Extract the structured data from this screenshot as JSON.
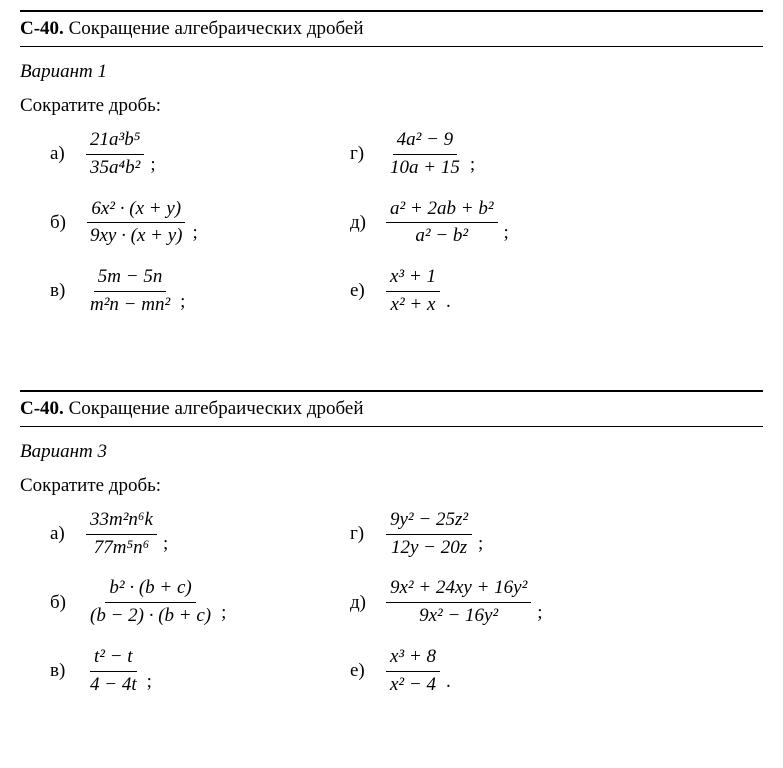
{
  "section1": {
    "code": "С-40.",
    "title": " Сокращение алгебраических дробей",
    "variant": "Вариант 1",
    "instruction": "Сократите дробь:",
    "problems": {
      "a": {
        "label": "а)",
        "num": "21a³b⁵",
        "den": "35a⁴b²",
        "tail": ";"
      },
      "g": {
        "label": "г)",
        "num": "4a² − 9",
        "den": "10a + 15",
        "tail": ";"
      },
      "b": {
        "label": "б)",
        "num": "6x² · (x + y)",
        "den": "9xy · (x + y)",
        "tail": ";"
      },
      "d": {
        "label": "д)",
        "num": "a² + 2ab + b²",
        "den": "a² − b²",
        "tail": ";"
      },
      "v": {
        "label": "в)",
        "num": "5m − 5n",
        "den": "m²n − mn²",
        "tail": ";"
      },
      "e": {
        "label": "е)",
        "num": "x³ + 1",
        "den": "x² + x",
        "tail": "."
      }
    }
  },
  "section2": {
    "code": "С-40.",
    "title": " Сокращение алгебраических дробей",
    "variant": "Вариант 3",
    "instruction": "Сократите дробь:",
    "problems": {
      "a": {
        "label": "а)",
        "num": "33m²n⁶k",
        "den": "77m⁵n⁶",
        "tail": ";"
      },
      "g": {
        "label": "г)",
        "num": "9y² − 25z²",
        "den": "12y − 20z",
        "tail": ";"
      },
      "b": {
        "label": "б)",
        "num": "b² · (b + c)",
        "den": "(b − 2) · (b + c)",
        "tail": ";"
      },
      "d": {
        "label": "д)",
        "num": "9x² + 24xy + 16y²",
        "den": "9x² − 16y²",
        "tail": ";"
      },
      "v": {
        "label": "в)",
        "num": "t² − t",
        "den": "4 − 4t",
        "tail": ";"
      },
      "e": {
        "label": "е)",
        "num": "x³ + 8",
        "den": "x² − 4",
        "tail": "."
      }
    }
  }
}
